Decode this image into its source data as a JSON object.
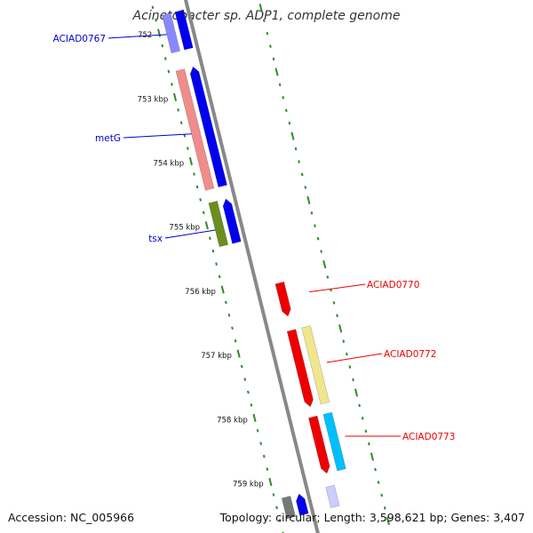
{
  "title": "Acinetobacter sp. ADP1, complete genome",
  "footer": {
    "accession": "Accession: NC_005966",
    "summary": "Topology: circular; Length: 3,598,621 bp; Genes: 3,407"
  },
  "colors": {
    "backbone": "#888888",
    "tick": "#2e8b2e",
    "label_forward": "#0000cc",
    "label_reverse": "#ee0000"
  },
  "kbp_ticks": [
    {
      "kbp": 752,
      "label": "752"
    },
    {
      "kbp": 753,
      "label": "753 kbp"
    },
    {
      "kbp": 754,
      "label": "754 kbp"
    },
    {
      "kbp": 755,
      "label": "755 kbp"
    },
    {
      "kbp": 756,
      "label": "756 kbp"
    },
    {
      "kbp": 757,
      "label": "757 kbp"
    },
    {
      "kbp": 758,
      "label": "758 kbp"
    },
    {
      "kbp": 759,
      "label": "759 kbp"
    }
  ],
  "genes": [
    {
      "id": "g1",
      "start_kbp": 751.75,
      "end_kbp": 752.34,
      "strand": "forward",
      "color": "#0000ee",
      "arrow": "none"
    },
    {
      "id": "g1b",
      "start_kbp": 751.75,
      "end_kbp": 752.34,
      "strand": "forward2",
      "color": "#8888ff",
      "arrow": "none"
    },
    {
      "id": "g2",
      "start_kbp": 752.62,
      "end_kbp": 754.48,
      "strand": "forward",
      "color": "#0000ee",
      "arrow": "start"
    },
    {
      "id": "g3",
      "start_kbp": 752.62,
      "end_kbp": 754.48,
      "strand": "forward2",
      "color": "#f08c8c",
      "arrow": "none"
    },
    {
      "id": "g4",
      "start_kbp": 754.68,
      "end_kbp": 755.36,
      "strand": "forward",
      "color": "#0000ee",
      "arrow": "start"
    },
    {
      "id": "g5",
      "start_kbp": 754.68,
      "end_kbp": 755.36,
      "strand": "forward2",
      "color": "#6b8e23",
      "arrow": "none"
    },
    {
      "id": "g6",
      "start_kbp": 756.11,
      "end_kbp": 756.63,
      "strand": "reverse",
      "color": "#ee0000",
      "arrow": "end"
    },
    {
      "id": "g7",
      "start_kbp": 756.85,
      "end_kbp": 758.04,
      "strand": "reverse",
      "color": "#ee0000",
      "arrow": "end"
    },
    {
      "id": "g8",
      "start_kbp": 756.85,
      "end_kbp": 758.04,
      "strand": "reverse2",
      "color": "#f0e68c",
      "arrow": "none"
    },
    {
      "id": "g9",
      "start_kbp": 758.2,
      "end_kbp": 759.08,
      "strand": "reverse",
      "color": "#ee0000",
      "arrow": "end"
    },
    {
      "id": "g10",
      "start_kbp": 758.2,
      "end_kbp": 759.08,
      "strand": "reverse2",
      "color": "#00bfff",
      "arrow": "none"
    },
    {
      "id": "g11",
      "start_kbp": 759.28,
      "end_kbp": 759.6,
      "strand": "forward2",
      "color": "#777777",
      "arrow": "none"
    },
    {
      "id": "g12",
      "start_kbp": 759.28,
      "end_kbp": 759.6,
      "strand": "forward",
      "color": "#0000ee",
      "arrow": "start"
    },
    {
      "id": "g13",
      "start_kbp": 759.28,
      "end_kbp": 759.6,
      "strand": "reverse",
      "color": "#ccccff",
      "arrow": "none"
    }
  ],
  "gene_labels": [
    {
      "text": "ACIAD0767",
      "kbp": 752.05,
      "side": "left",
      "color": "#0000cc"
    },
    {
      "text": "metG",
      "kbp": 753.6,
      "side": "left",
      "color": "#0000cc"
    },
    {
      "text": "tsx",
      "kbp": 755.1,
      "side": "left",
      "color": "#0000cc"
    },
    {
      "text": "ACIAD0770",
      "kbp": 756.35,
      "side": "right",
      "color": "#ee0000"
    },
    {
      "text": "ACIAD0772",
      "kbp": 757.45,
      "side": "right",
      "color": "#ee0000"
    },
    {
      "text": "ACIAD0773",
      "kbp": 758.6,
      "side": "right",
      "color": "#ee0000"
    }
  ]
}
